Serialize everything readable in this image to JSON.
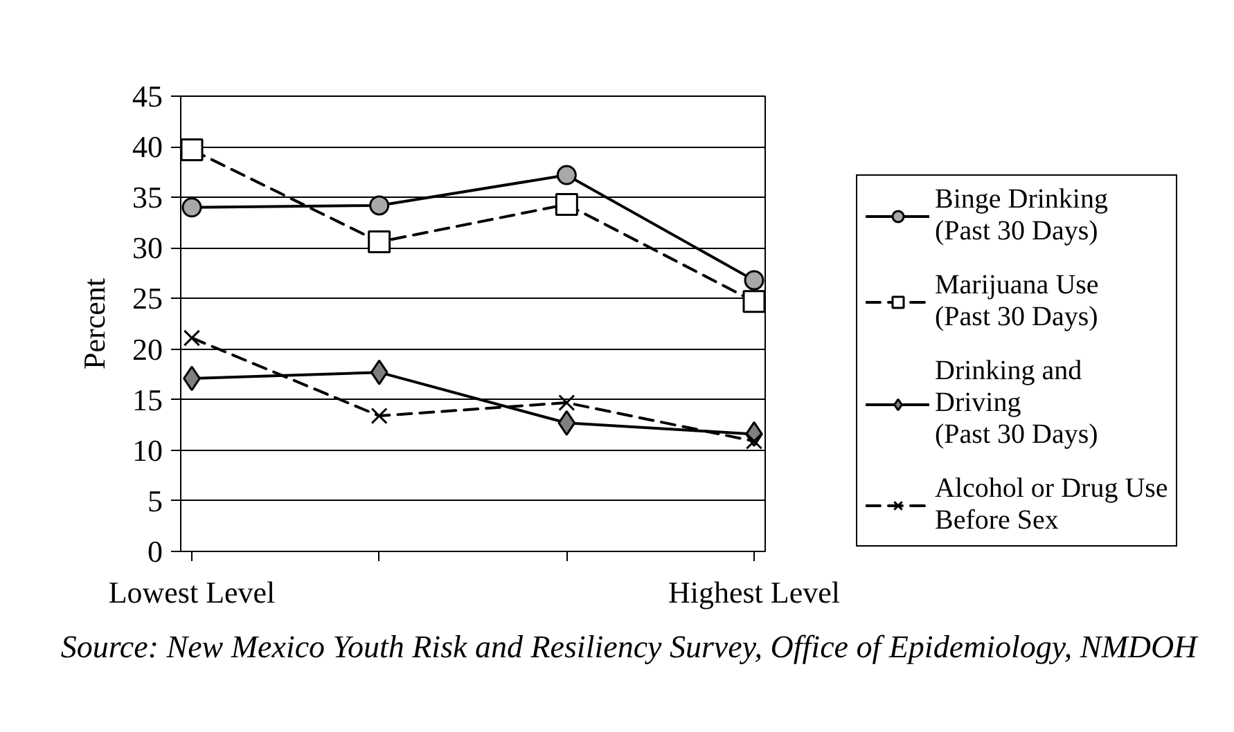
{
  "chart_data": {
    "type": "line",
    "categories": [
      "Lowest Level",
      null,
      null,
      "Highest Level"
    ],
    "ylabel": "Percent",
    "ylim": [
      0,
      45
    ],
    "yticks": [
      0,
      5,
      10,
      15,
      20,
      25,
      30,
      35,
      40,
      45
    ],
    "grid": "y",
    "legend": "right",
    "annotations": [
      "Source: New Mexico Youth Risk and Resiliency Survey, Office of Epidemiology, NMDOH"
    ],
    "series": [
      {
        "name": "Binge Drinking (Past 30 Days)",
        "color": "#000000",
        "marker": "circle",
        "line_style": "solid",
        "values": [
          34,
          34.2,
          37.2,
          26.8
        ]
      },
      {
        "name": "Marijuana Use (Past 30 Days)",
        "color": "#000000",
        "marker": "square",
        "line_style": "dashed",
        "values": [
          39.7,
          30.6,
          34.3,
          24.7
        ]
      },
      {
        "name": "Drinking and Driving (Past 30 Days)",
        "color": "#000000",
        "marker": "diamond",
        "line_style": "solid",
        "values": [
          17.1,
          17.7,
          12.7,
          11.6
        ]
      },
      {
        "name": "Alcohol or Drug Use Before Sex",
        "color": "#000000",
        "marker": "cross",
        "line_style": "dashed",
        "values": [
          21.1,
          13.4,
          14.7,
          10.9
        ]
      }
    ]
  }
}
